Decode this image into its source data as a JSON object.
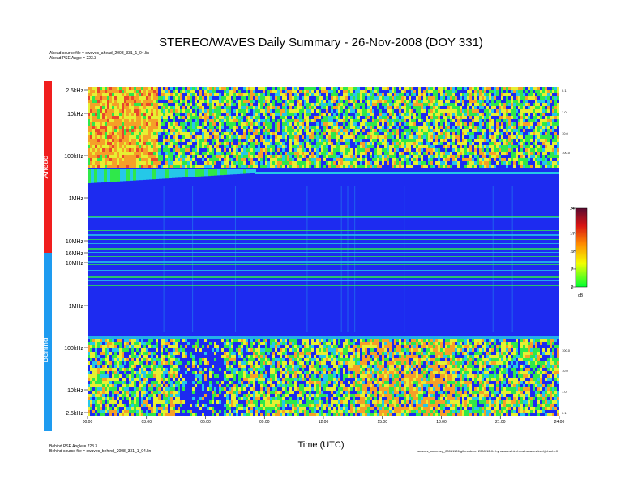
{
  "title": "STEREO/WAVES Daily Summary - 26-Nov-2008 (DOY 331)",
  "header_lines": [
    "Ahead source file = swaves_ahead_2008_331_1_04.lin",
    "Ahead PSE Angle = 223.3"
  ],
  "footer_lines": [
    "Behind PSE Angle = 223.3",
    "Behind source file = swaves_behind_2008_331_1_04.lin"
  ],
  "footer_right": "swaves_summary_20081126.gif made on 2008-12-04 by swaves.html.read.swaves.kwd.jld.vol.v.0",
  "chart_data": {
    "type": "heatmap",
    "title": "STEREO/WAVES Daily Summary - 26-Nov-2008 (DOY 331)",
    "xlabel": "Time (UTC)",
    "x_ticks": [
      "00:00",
      "03:00",
      "06:00",
      "09:00",
      "12:00",
      "15:00",
      "18:00",
      "21:00",
      "24:00"
    ],
    "panels": [
      {
        "name": "Ahead",
        "color": "#f01e1e",
        "freq_ticks": [
          "2.5kHz",
          "10kHz",
          "100kHz",
          "1MHz",
          "10MHz",
          "16MHz"
        ],
        "right_ticks": [
          "0.1",
          "1.0",
          "10.0",
          "100.0"
        ]
      },
      {
        "name": "Behind",
        "color": "#1e9bf0",
        "freq_ticks": [
          "10MHz",
          "1MHz",
          "100kHz",
          "10kHz",
          "2.5kHz"
        ],
        "right_ticks": [
          "100.0",
          "10.0",
          "1.0",
          "0.1"
        ]
      }
    ],
    "colorbar": {
      "ticks": [
        "24",
        "17",
        "12",
        "7",
        "2"
      ],
      "unit": "dB",
      "range": [
        2,
        24
      ],
      "colors": [
        "#00ff30",
        "#f4ff00",
        "#ff8a00",
        "#d81414",
        "#5a0a30"
      ]
    },
    "palette": {
      "background": "#1d2bf0",
      "band_bright": "#28d2ff",
      "green": "#2fe84a",
      "yellow": "#e6f032",
      "orange": "#f5a028",
      "red": "#e8462e",
      "cyan": "#25c8e8"
    }
  }
}
